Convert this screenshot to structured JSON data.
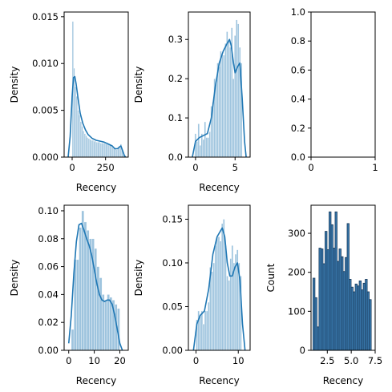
{
  "colors": {
    "hist_fill": "#9ec4de",
    "kde_line": "#1f77b4",
    "count_fill": "#3a7bb0",
    "count_edge": "#1a3a5a"
  },
  "chart_data": [
    {
      "type": "histogram",
      "position": "row1-col1",
      "xlabel": "Recency",
      "ylabel": "Density",
      "xlim": [
        -60,
        420
      ],
      "ylim": [
        0,
        0.0155
      ],
      "xticks": [
        0,
        250
      ],
      "xtick_labels": [
        "0",
        "250"
      ],
      "yticks": [
        0.0,
        0.005,
        0.01,
        0.015
      ],
      "ytick_labels": [
        "0.000",
        "0.005",
        "0.010",
        "0.015"
      ],
      "bin_width": 10,
      "bins_x": [
        0,
        10,
        20,
        30,
        40,
        50,
        60,
        70,
        80,
        90,
        100,
        110,
        120,
        130,
        140,
        150,
        160,
        170,
        180,
        190,
        200,
        210,
        220,
        230,
        240,
        250,
        260,
        270,
        280,
        290,
        300,
        310,
        320,
        330,
        340,
        350,
        360,
        370,
        380
      ],
      "bins_y": [
        0.0145,
        0.0095,
        0.0075,
        0.0065,
        0.005,
        0.0045,
        0.0038,
        0.0033,
        0.0028,
        0.0025,
        0.0023,
        0.0021,
        0.002,
        0.0019,
        0.0018,
        0.0018,
        0.0017,
        0.0017,
        0.0016,
        0.0016,
        0.0016,
        0.0015,
        0.0015,
        0.0015,
        0.0015,
        0.0014,
        0.0014,
        0.0013,
        0.0013,
        0.0012,
        0.0011,
        0.001,
        0.0009,
        0.0008,
        0.0009,
        0.0011,
        0.0014,
        0.0009,
        0.0003
      ],
      "kde_x": [
        -30,
        -15,
        0,
        10,
        20,
        30,
        45,
        60,
        80,
        100,
        120,
        150,
        180,
        210,
        240,
        270,
        300,
        320,
        340,
        355,
        365,
        375,
        390,
        400
      ],
      "kde_y": [
        0.0,
        0.0022,
        0.0065,
        0.0085,
        0.0086,
        0.0078,
        0.0062,
        0.0047,
        0.0036,
        0.0029,
        0.0024,
        0.002,
        0.0018,
        0.0017,
        0.0016,
        0.0014,
        0.0012,
        0.0009,
        0.0009,
        0.0011,
        0.0012,
        0.0008,
        0.0002,
        0.0
      ]
    },
    {
      "type": "histogram",
      "position": "row1-col2",
      "xlabel": "Recency",
      "ylabel": "Density",
      "xlim": [
        -0.9,
        6.9
      ],
      "ylim": [
        0,
        0.37
      ],
      "xticks": [
        0,
        5
      ],
      "xtick_labels": [
        "0",
        "5"
      ],
      "yticks": [
        0.0,
        0.1,
        0.2,
        0.3
      ],
      "ytick_labels": [
        "0.0",
        "0.1",
        "0.2",
        "0.3"
      ],
      "bin_width": 0.2,
      "bins_x": [
        -0.1,
        0.1,
        0.3,
        0.5,
        0.7,
        0.9,
        1.1,
        1.3,
        1.5,
        1.7,
        1.9,
        2.1,
        2.3,
        2.5,
        2.7,
        2.9,
        3.1,
        3.3,
        3.5,
        3.7,
        3.9,
        4.1,
        4.3,
        4.5,
        4.7,
        4.9,
        5.1,
        5.3,
        5.5,
        5.7
      ],
      "bins_y": [
        0.06,
        0.04,
        0.085,
        0.03,
        0.06,
        0.045,
        0.09,
        0.05,
        0.05,
        0.065,
        0.13,
        0.14,
        0.2,
        0.19,
        0.24,
        0.23,
        0.27,
        0.26,
        0.26,
        0.29,
        0.32,
        0.3,
        0.28,
        0.33,
        0.2,
        0.31,
        0.35,
        0.34,
        0.28,
        0.24
      ],
      "kde_x": [
        -0.4,
        -0.2,
        0.0,
        0.5,
        1.0,
        1.5,
        2.0,
        2.5,
        3.0,
        3.5,
        4.0,
        4.3,
        4.5,
        4.8,
        5.0,
        5.3,
        5.6,
        5.9,
        6.2,
        6.4
      ],
      "kde_y": [
        0.0,
        0.02,
        0.04,
        0.05,
        0.055,
        0.06,
        0.1,
        0.18,
        0.24,
        0.27,
        0.29,
        0.3,
        0.285,
        0.24,
        0.215,
        0.23,
        0.24,
        0.15,
        0.04,
        0.0
      ]
    },
    {
      "type": "empty",
      "position": "row1-col3",
      "xlim": [
        0,
        1
      ],
      "ylim": [
        0,
        1
      ],
      "xticks": [
        0,
        1
      ],
      "xtick_labels": [
        "0",
        "1"
      ],
      "yticks": [
        0.0,
        0.2,
        0.4,
        0.6,
        0.8,
        1.0
      ],
      "ytick_labels": [
        "0.0",
        "0.2",
        "0.4",
        "0.6",
        "0.8",
        "1.0"
      ]
    },
    {
      "type": "histogram",
      "position": "row2-col1",
      "xlabel": "Recency",
      "ylabel": "Density",
      "xlim": [
        -1.8,
        23.3
      ],
      "ylim": [
        0,
        0.104
      ],
      "xticks": [
        0,
        10,
        20
      ],
      "xtick_labels": [
        "0",
        "10",
        "20"
      ],
      "yticks": [
        0.0,
        0.02,
        0.04,
        0.06,
        0.08,
        0.1
      ],
      "ytick_labels": [
        "0.00",
        "0.02",
        "0.04",
        "0.06",
        "0.08",
        "0.10"
      ],
      "bin_width": 1,
      "bins_x": [
        1,
        2,
        3,
        4,
        5,
        6,
        7,
        8,
        9,
        10,
        11,
        12,
        13,
        14,
        15,
        16,
        17,
        18,
        19
      ],
      "bins_y": [
        0.015,
        0.065,
        0.065,
        0.088,
        0.1,
        0.092,
        0.086,
        0.08,
        0.08,
        0.073,
        0.06,
        0.052,
        0.04,
        0.036,
        0.04,
        0.038,
        0.036,
        0.033,
        0.03
      ],
      "kde_x": [
        0,
        1,
        2,
        3,
        4,
        5,
        6,
        7,
        8,
        9,
        10,
        11,
        12,
        13,
        14,
        15,
        16,
        17,
        18,
        19,
        20,
        21
      ],
      "kde_y": [
        0.005,
        0.025,
        0.055,
        0.078,
        0.09,
        0.091,
        0.086,
        0.08,
        0.075,
        0.068,
        0.058,
        0.048,
        0.04,
        0.036,
        0.035,
        0.036,
        0.036,
        0.033,
        0.025,
        0.015,
        0.005,
        0.0
      ]
    },
    {
      "type": "histogram",
      "position": "row2-col2",
      "xlabel": "Recency",
      "ylabel": "Density",
      "xlim": [
        -1.8,
        12.8
      ],
      "ylim": [
        0,
        0.166
      ],
      "xticks": [
        0,
        10
      ],
      "xtick_labels": [
        "0",
        "10"
      ],
      "yticks": [
        0.0,
        0.05,
        0.1,
        0.15
      ],
      "ytick_labels": [
        "0.00",
        "0.05",
        "0.10",
        "0.15"
      ],
      "bin_width": 0.4,
      "bins_x": [
        0.0,
        0.4,
        0.8,
        1.2,
        1.6,
        2.0,
        2.4,
        2.8,
        3.2,
        3.6,
        4.0,
        4.4,
        4.8,
        5.2,
        5.6,
        6.0,
        6.4,
        6.8,
        7.2,
        7.6,
        8.0,
        8.4,
        8.8,
        9.2,
        9.6,
        10.0,
        10.4
      ],
      "bins_y": [
        0.035,
        0.045,
        0.04,
        0.045,
        0.03,
        0.045,
        0.045,
        0.055,
        0.095,
        0.09,
        0.1,
        0.12,
        0.13,
        0.13,
        0.125,
        0.145,
        0.15,
        0.12,
        0.085,
        0.08,
        0.105,
        0.12,
        0.1,
        0.11,
        0.115,
        0.1,
        0.085
      ],
      "kde_x": [
        -0.6,
        -0.2,
        0.2,
        1.0,
        2.0,
        3.0,
        4.0,
        5.0,
        5.6,
        6.2,
        6.8,
        7.4,
        8.0,
        8.6,
        9.2,
        9.8,
        10.4,
        11.0,
        11.6
      ],
      "kde_y": [
        0.0,
        0.015,
        0.03,
        0.04,
        0.045,
        0.07,
        0.11,
        0.13,
        0.135,
        0.14,
        0.13,
        0.1,
        0.085,
        0.085,
        0.095,
        0.1,
        0.08,
        0.03,
        0.0
      ]
    },
    {
      "type": "histogram",
      "position": "row2-col3",
      "xlabel": "Recency",
      "ylabel": "Count",
      "xlim": [
        0.8,
        7.5
      ],
      "ylim": [
        0,
        372
      ],
      "xticks": [
        2.5,
        5.0,
        7.5
      ],
      "xtick_labels": [
        "2.5",
        "5.0",
        "7.5"
      ],
      "yticks": [
        0,
        100,
        200,
        300
      ],
      "ytick_labels": [
        "0",
        "100",
        "200",
        "300"
      ],
      "bin_width": 0.21,
      "bins_x": [
        1.0,
        1.21,
        1.42,
        1.63,
        1.84,
        2.05,
        2.26,
        2.47,
        2.68,
        2.89,
        3.1,
        3.31,
        3.52,
        3.73,
        3.94,
        4.15,
        4.36,
        4.57,
        4.78,
        4.99,
        5.2,
        5.41,
        5.62,
        5.83,
        6.04,
        6.25,
        6.46,
        6.67,
        6.88
      ],
      "bins_y": [
        185,
        135,
        60,
        262,
        260,
        222,
        305,
        258,
        355,
        322,
        262,
        355,
        228,
        260,
        240,
        202,
        238,
        325,
        182,
        162,
        150,
        170,
        165,
        178,
        155,
        172,
        182,
        150,
        130
      ]
    }
  ]
}
